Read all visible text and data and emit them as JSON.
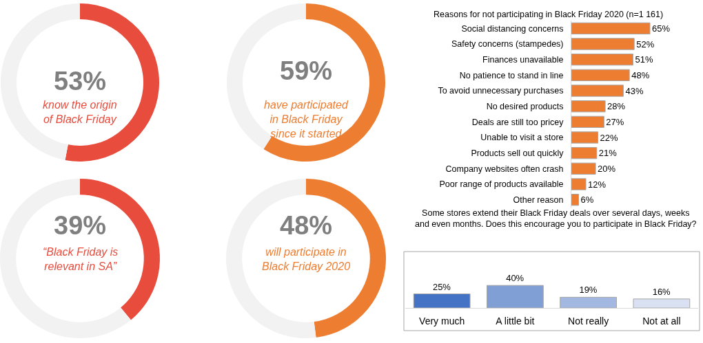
{
  "chart_data": [
    {
      "type": "donut",
      "categories": [
        null,
        null
      ],
      "values": [
        53,
        47
      ],
      "colors": [
        "#e84c3d",
        "#f2f2f2"
      ],
      "value_labels": [
        "53%",
        null
      ],
      "annotations": [
        "know the origin\nof Black Friday"
      ]
    },
    {
      "type": "donut",
      "categories": [
        null,
        null
      ],
      "values": [
        59,
        41
      ],
      "colors": [
        "#ed7d31",
        "#f2f2f2"
      ],
      "value_labels": [
        "59%",
        null
      ],
      "annotations": [
        "have participated\nin Black Friday\nsince it started"
      ]
    },
    {
      "type": "donut",
      "categories": [
        null,
        null
      ],
      "values": [
        39,
        61
      ],
      "colors": [
        "#e84c3d",
        "#f2f2f2"
      ],
      "value_labels": [
        "39%",
        null
      ],
      "annotations": [
        "“Black Friday is\nrelevant in SA”"
      ]
    },
    {
      "type": "donut",
      "categories": [
        null,
        null
      ],
      "values": [
        48,
        52
      ],
      "colors": [
        "#ed7d31",
        "#f2f2f2"
      ],
      "value_labels": [
        "48%",
        null
      ],
      "annotations": [
        "will participate in\nBlack Friday 2020"
      ]
    },
    {
      "type": "bar",
      "orientation": "horizontal",
      "title": "Reasons for not participating in Black Friday 2020 (n=1 161)",
      "categories": [
        "Social distancing concerns",
        "Safety concerns (stampedes)",
        "Finances unavailable",
        "No patience to stand in line",
        "To avoid unnecessary purchases",
        "No desired products",
        "Deals are still too pricey",
        "Unable to visit a store",
        "Products sell out quickly",
        "Company websites often crash",
        "Poor range of products available",
        "Other reason"
      ],
      "values": [
        65,
        52,
        51,
        48,
        43,
        28,
        27,
        22,
        21,
        20,
        12,
        6
      ],
      "color": "#ed7d31",
      "value_labels": [
        "65%",
        "52%",
        "51%",
        "48%",
        "43%",
        "28%",
        "27%",
        "22%",
        "21%",
        "20%",
        "12%",
        "6%"
      ],
      "tick_labels": "y"
    },
    {
      "type": "bar",
      "title": "Some stores extend their Black Friday deals over several days, weeks\nand even months. Does this encourage you to participate in Black Friday?",
      "categories": [
        "Very much",
        "A little bit",
        "Not really",
        "Not at all"
      ],
      "values": [
        25,
        40,
        19,
        16
      ],
      "colors": [
        "#4472c4",
        "#7f9fd5",
        "#a3b8e0",
        "#d9e1f3"
      ],
      "value_labels": [
        "25%",
        "40%",
        "19%",
        "16%"
      ],
      "ylim": [
        0,
        100
      ],
      "tick_labels": "x"
    }
  ]
}
